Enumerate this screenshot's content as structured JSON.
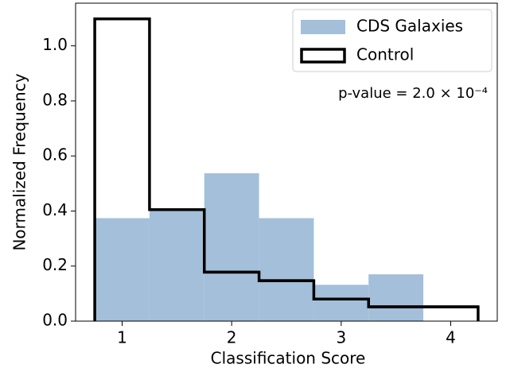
{
  "chart_data": {
    "type": "histogram",
    "xlabel": "Classification Score",
    "ylabel": "Normalized Frequency",
    "bins": [
      0.75,
      1.25,
      1.75,
      2.25,
      2.75,
      3.25,
      3.75,
      4.25
    ],
    "series": [
      {
        "name": "CDS Galaxies",
        "color": "#a3bfda",
        "style": "filled",
        "values": [
          0.374,
          0.41,
          0.537,
          0.374,
          0.132,
          0.17,
          0
        ]
      },
      {
        "name": "Control",
        "color": "#000000",
        "style": "step",
        "values": [
          1.098,
          0.405,
          0.178,
          0.147,
          0.08,
          0.052,
          0.052
        ]
      }
    ],
    "xlim": [
      0.575,
      4.425
    ],
    "xticks": [
      1,
      2,
      3,
      4
    ],
    "ylim": [
      0,
      1.155
    ],
    "yticks": [
      {
        "value": 0,
        "label": "0.0"
      },
      0.2,
      0.4,
      0.6,
      0.8,
      {
        "value": 1,
        "label": "1.0"
      }
    ],
    "legend": "upper right",
    "annotation": "p-value = 2.0 × 10⁻⁴"
  }
}
